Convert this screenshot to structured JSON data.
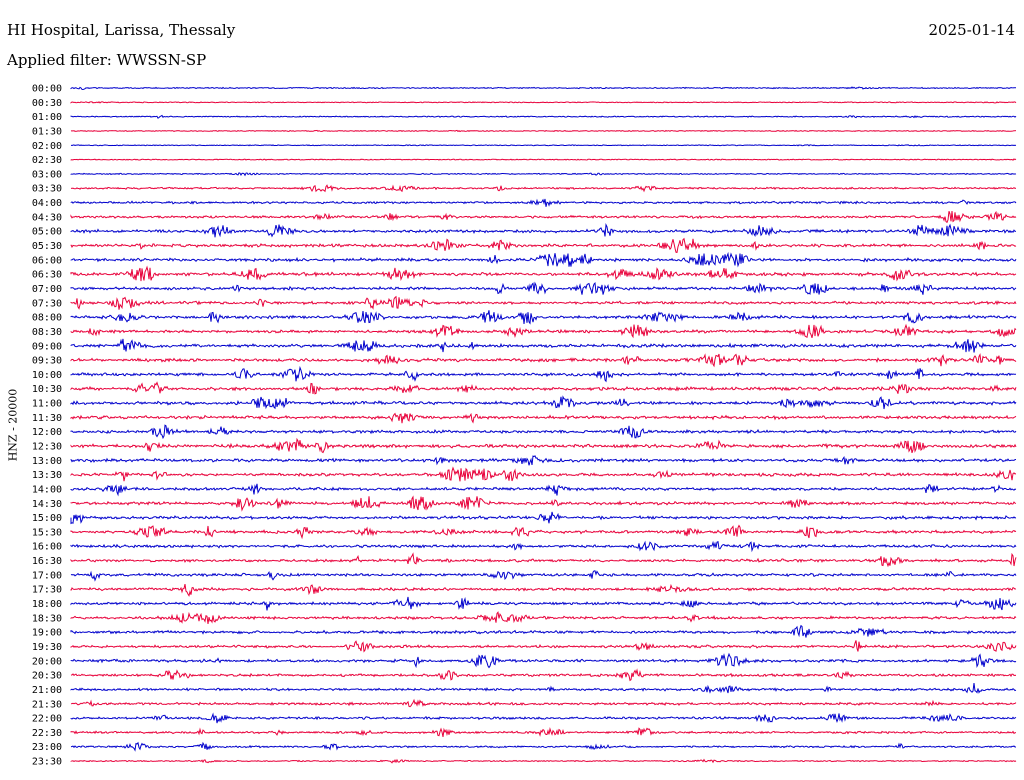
{
  "header": {
    "station": "HI Hospital, Larissa, Thessaly",
    "date": "2025-01-14",
    "filter": "Applied filter: WWSSN-SP"
  },
  "chart_data": {
    "type": "line",
    "title": "HI Hospital, Larissa, Thessaly",
    "ylabel": "HNZ - 20000",
    "xlabel": "",
    "row_interval_minutes": 30,
    "rows": [
      "00:00",
      "00:30",
      "01:00",
      "01:30",
      "02:00",
      "02:30",
      "03:00",
      "03:30",
      "04:00",
      "04:30",
      "05:00",
      "05:30",
      "06:00",
      "06:30",
      "07:00",
      "07:30",
      "08:00",
      "08:30",
      "09:00",
      "09:30",
      "10:00",
      "10:30",
      "11:00",
      "11:30",
      "12:00",
      "12:30",
      "13:00",
      "13:30",
      "14:00",
      "14:30",
      "15:00",
      "15:30",
      "16:00",
      "16:30",
      "17:00",
      "17:30",
      "18:00",
      "18:30",
      "19:00",
      "19:30",
      "20:00",
      "20:30",
      "21:00",
      "21:30",
      "22:00",
      "22:30",
      "23:00",
      "23:30"
    ],
    "colors": [
      "#0000cc",
      "#e8003a"
    ],
    "relative_noise_level": [
      0.6,
      0.15,
      0.5,
      0.2,
      0.15,
      0.2,
      0.5,
      1.5,
      2.0,
      2.3,
      3.0,
      3.2,
      3.3,
      3.5,
      3.0,
      3.0,
      3.2,
      3.0,
      3.4,
      3.4,
      3.0,
      3.2,
      3.3,
      3.3,
      3.0,
      3.6,
      3.3,
      3.3,
      3.0,
      3.0,
      3.1,
      3.1,
      2.8,
      2.8,
      2.8,
      2.8,
      2.8,
      2.8,
      2.8,
      2.6,
      2.8,
      2.6,
      2.4,
      2.3,
      2.2,
      2.0,
      1.5,
      0.6
    ],
    "grid": false,
    "legend": "none"
  }
}
